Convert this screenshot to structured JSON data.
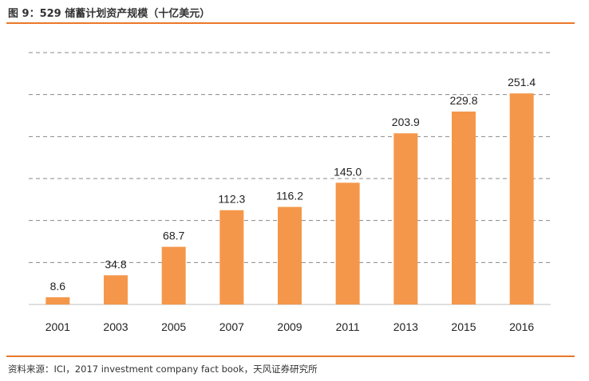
{
  "figure": {
    "title": "图 9：529 储蓄计划资产规模（十亿美元）",
    "source": "资料来源：ICI，2017 investment company fact book，天风证券研究所"
  },
  "colors": {
    "bar": "#f5974a",
    "accent_rule": "#e8782a",
    "grid": "#888888"
  },
  "chart_data": {
    "type": "bar",
    "title": "529 储蓄计划资产规模（十亿美元）",
    "categories": [
      "2001",
      "2003",
      "2005",
      "2007",
      "2009",
      "2011",
      "2013",
      "2015",
      "2016"
    ],
    "values": [
      8.6,
      34.8,
      68.7,
      112.3,
      116.2,
      145.0,
      203.9,
      229.8,
      251.4
    ],
    "data_labels": [
      "8.6",
      "34.8",
      "68.7",
      "112.3",
      "116.2",
      "145.0",
      "203.9",
      "229.8",
      "251.4"
    ],
    "xlabel": "",
    "ylabel": "",
    "ylim": [
      0,
      300
    ],
    "y_axis_labels_shown": false,
    "grid": true,
    "grid_style": "dashed",
    "legend": "none"
  }
}
